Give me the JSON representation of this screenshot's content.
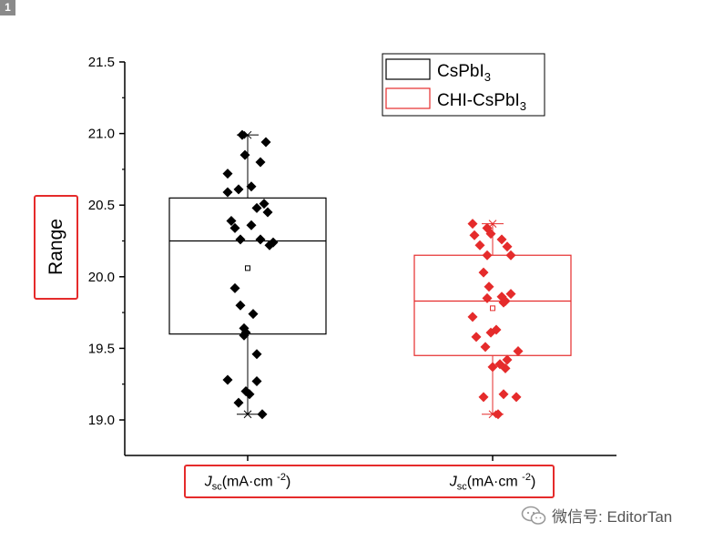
{
  "panel_badge": "1",
  "watermark": {
    "text": "微信号: EditorTan",
    "icon": "wechat-icon"
  },
  "chart_data": {
    "type": "box",
    "title": "",
    "ylabel": "Range",
    "ylim": [
      18.75,
      21.5
    ],
    "yticks": [
      19.0,
      19.5,
      20.0,
      20.5,
      21.0,
      21.5
    ],
    "ytick_labels": [
      "19.0",
      "19.5",
      "20.0",
      "20.5",
      "21.0",
      "21.5"
    ],
    "xlabel_parts": {
      "main": "J",
      "sub": "sc",
      "unit": "(mA·cm ",
      "sup": "-2",
      "close": ")"
    },
    "categories": [
      "Jsc(mA·cm -2)",
      "Jsc(mA·cm -2)"
    ],
    "legend": [
      {
        "label": "CsPbI",
        "sub": "3",
        "color": "#000000"
      },
      {
        "label": "CHI-CsPbI",
        "sub": "3",
        "color": "#e52b2b"
      }
    ],
    "series": [
      {
        "name": "CsPbI3",
        "color": "#000000",
        "box": {
          "q1": 19.6,
          "median": 20.25,
          "q3": 20.55,
          "mean": 20.06,
          "whisker_low": 19.04,
          "whisker_high": 20.99
        },
        "points": [
          20.99,
          20.94,
          20.85,
          20.8,
          20.72,
          20.63,
          20.61,
          20.59,
          20.51,
          20.48,
          20.45,
          20.39,
          20.36,
          20.34,
          20.26,
          20.26,
          20.24,
          20.22,
          19.92,
          19.8,
          19.74,
          19.64,
          19.61,
          19.59,
          19.46,
          19.28,
          19.27,
          19.2,
          19.18,
          19.12,
          19.04
        ]
      },
      {
        "name": "CHI-CsPbI3",
        "color": "#e52b2b",
        "box": {
          "q1": 19.45,
          "median": 19.83,
          "q3": 20.15,
          "mean": 19.78,
          "whisker_low": 19.04,
          "whisker_high": 20.37
        },
        "points": [
          20.37,
          20.34,
          20.3,
          20.29,
          20.26,
          20.22,
          20.21,
          20.15,
          20.15,
          20.03,
          19.93,
          19.88,
          19.86,
          19.85,
          19.83,
          19.82,
          19.72,
          19.63,
          19.61,
          19.58,
          19.51,
          19.48,
          19.42,
          19.39,
          19.37,
          19.36,
          19.18,
          19.16,
          19.16,
          19.04
        ]
      }
    ]
  }
}
